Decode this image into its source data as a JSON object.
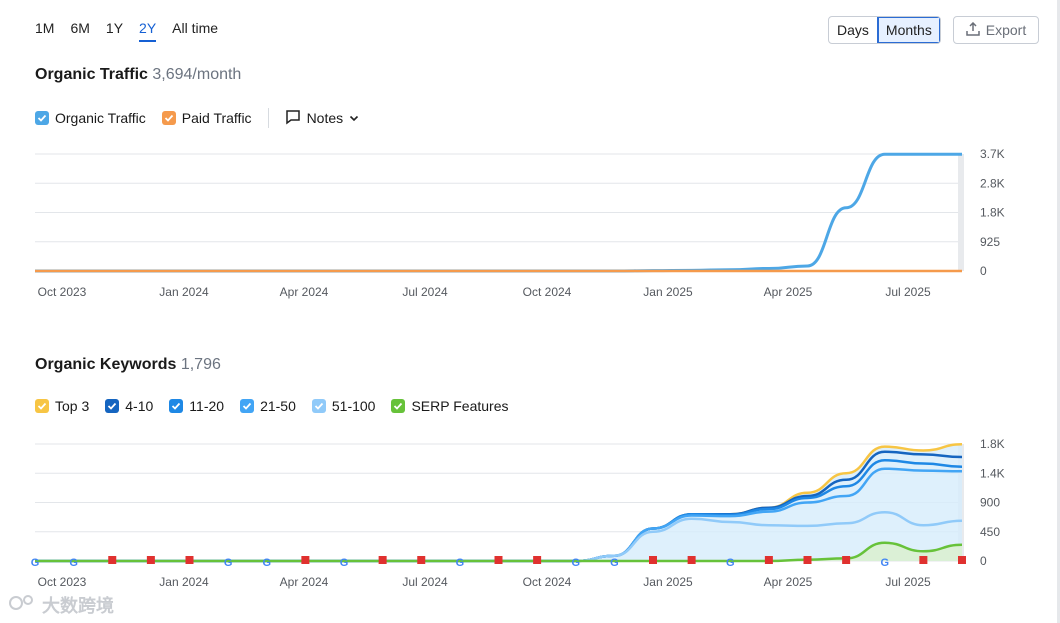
{
  "controls": {
    "ranges": [
      "1M",
      "6M",
      "1Y",
      "2Y",
      "All time"
    ],
    "active_range": "2Y",
    "granularity": [
      "Days",
      "Months"
    ],
    "active_granularity": "Months",
    "export_label": "Export"
  },
  "traffic": {
    "title": "Organic Traffic",
    "value": "3,694/month",
    "legend": {
      "organic": "Organic Traffic",
      "paid": "Paid Traffic",
      "notes": "Notes"
    }
  },
  "keywords": {
    "title": "Organic Keywords",
    "value": "1,796",
    "legend": [
      "Top 3",
      "4-10",
      "11-20",
      "21-50",
      "51-100",
      "SERP Features"
    ]
  },
  "watermark": "大数跨境",
  "colors": {
    "organic": "#4da7e6",
    "paid": "#f59a4c",
    "top3": "#f7c544",
    "r4_10": "#1565c0",
    "r11_20": "#1e88e5",
    "r21_50": "#42a5f5",
    "r51_100": "#90caf9",
    "serp": "#67c23a",
    "active": "#1560d4"
  },
  "chart_data": [
    {
      "type": "line",
      "title": "Organic Traffic",
      "x_tick_labels": [
        "Oct 2023",
        "Jan 2024",
        "Apr 2024",
        "Jul 2024",
        "Oct 2024",
        "Jan 2025",
        "Apr 2025",
        "Jul 2025"
      ],
      "y_tick_labels": [
        "3.7K",
        "2.8K",
        "1.8K",
        "925",
        "0"
      ],
      "ylim": [
        0,
        3700
      ],
      "x": [
        "Sep 2023",
        "Oct 2023",
        "Nov 2023",
        "Dec 2023",
        "Jan 2024",
        "Feb 2024",
        "Mar 2024",
        "Apr 2024",
        "May 2024",
        "Jun 2024",
        "Jul 2024",
        "Aug 2024",
        "Sep 2024",
        "Oct 2024",
        "Nov 2024",
        "Dec 2024",
        "Jan 2025",
        "Feb 2025",
        "Mar 2025",
        "Apr 2025",
        "May 2025",
        "Jun 2025",
        "Jul 2025",
        "Aug 2025",
        "Sep 2025"
      ],
      "series": [
        {
          "name": "Organic Traffic",
          "values": [
            0,
            0,
            0,
            0,
            0,
            0,
            0,
            0,
            0,
            0,
            0,
            0,
            0,
            0,
            0,
            0,
            10,
            20,
            40,
            80,
            160,
            2000,
            3694,
            3694,
            3694
          ]
        },
        {
          "name": "Paid Traffic",
          "values": [
            0,
            0,
            0,
            0,
            0,
            0,
            0,
            0,
            0,
            0,
            0,
            0,
            0,
            0,
            0,
            0,
            0,
            0,
            0,
            0,
            0,
            0,
            0,
            0,
            0
          ]
        }
      ]
    },
    {
      "type": "area",
      "title": "Organic Keywords",
      "x_tick_labels": [
        "Oct 2023",
        "Jan 2024",
        "Apr 2024",
        "Jul 2024",
        "Oct 2024",
        "Jan 2025",
        "Apr 2025",
        "Jul 2025"
      ],
      "y_tick_labels": [
        "1.8K",
        "1.4K",
        "900",
        "450",
        "0"
      ],
      "ylim": [
        0,
        1800
      ],
      "x": [
        "Sep 2023",
        "Oct 2023",
        "Nov 2023",
        "Dec 2023",
        "Jan 2024",
        "Feb 2024",
        "Mar 2024",
        "Apr 2024",
        "May 2024",
        "Jun 2024",
        "Jul 2024",
        "Aug 2024",
        "Sep 2024",
        "Oct 2024",
        "Nov 2024",
        "Dec 2024",
        "Jan 2025",
        "Feb 2025",
        "Mar 2025",
        "Apr 2025",
        "May 2025",
        "Jun 2025",
        "Jul 2025",
        "Aug 2025",
        "Sep 2025"
      ],
      "series": [
        {
          "name": "Top 3",
          "values": [
            0,
            0,
            0,
            0,
            0,
            0,
            0,
            0,
            0,
            0,
            0,
            0,
            0,
            0,
            0,
            80,
            500,
            720,
            720,
            820,
            1050,
            1350,
            1760,
            1700,
            1796
          ]
        },
        {
          "name": "4-10",
          "values": [
            0,
            0,
            0,
            0,
            0,
            0,
            0,
            0,
            0,
            0,
            0,
            0,
            0,
            0,
            0,
            80,
            500,
            720,
            720,
            820,
            1000,
            1250,
            1680,
            1640,
            1600
          ]
        },
        {
          "name": "11-20",
          "values": [
            0,
            0,
            0,
            0,
            0,
            0,
            0,
            0,
            0,
            0,
            0,
            0,
            0,
            0,
            0,
            80,
            500,
            720,
            710,
            800,
            970,
            1150,
            1550,
            1500,
            1450
          ]
        },
        {
          "name": "21-50",
          "values": [
            0,
            0,
            0,
            0,
            0,
            0,
            0,
            0,
            0,
            0,
            0,
            0,
            0,
            0,
            0,
            80,
            500,
            700,
            690,
            760,
            900,
            1000,
            1420,
            1390,
            1380
          ]
        },
        {
          "name": "51-100",
          "values": [
            0,
            0,
            0,
            0,
            0,
            0,
            0,
            0,
            0,
            0,
            0,
            0,
            0,
            0,
            0,
            80,
            450,
            650,
            600,
            550,
            540,
            580,
            750,
            550,
            620
          ]
        },
        {
          "name": "SERP Features",
          "values": [
            0,
            0,
            0,
            0,
            0,
            0,
            0,
            0,
            0,
            0,
            0,
            0,
            0,
            0,
            0,
            0,
            0,
            0,
            0,
            0,
            20,
            40,
            280,
            150,
            250
          ]
        }
      ],
      "note_markers": [
        "G",
        "G",
        "flag",
        "flag",
        "flag",
        "G",
        "G",
        "flag",
        "G",
        "flag",
        "flag",
        "G",
        "flag",
        "flag",
        "G",
        "G",
        "flag",
        "flag",
        "G",
        "flag",
        "flag",
        "flag",
        "G",
        "flag",
        "flag"
      ]
    }
  ]
}
